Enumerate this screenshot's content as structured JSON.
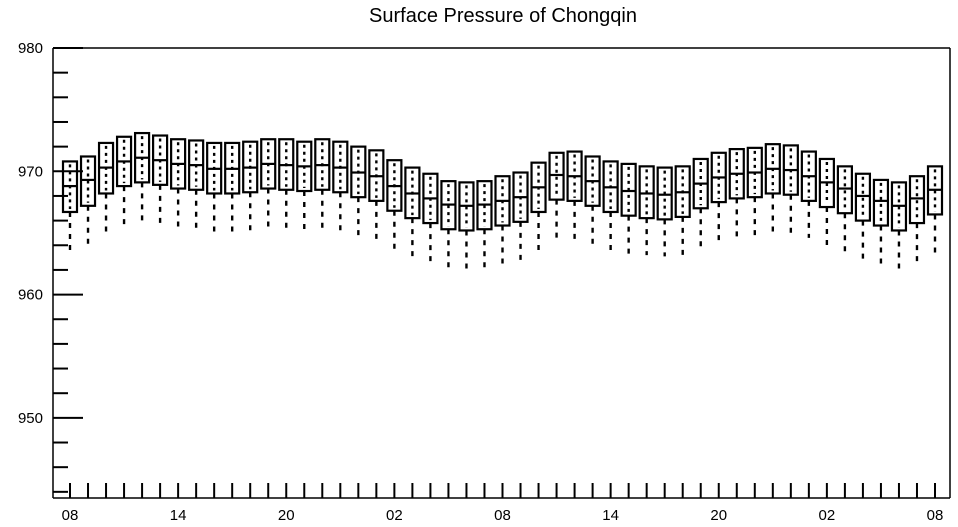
{
  "chart_data": {
    "type": "box",
    "title": "Surface Pressure of Chongqin",
    "xlabel": "",
    "ylabel": "",
    "ylim": [
      943.5,
      980
    ],
    "yticks_major": [
      950,
      960,
      970,
      980
    ],
    "x_tick_labels": [
      "08",
      "14",
      "20",
      "02",
      "08",
      "14",
      "20",
      "02",
      "08"
    ],
    "x_tick_positions": [
      0,
      6,
      12,
      18,
      24,
      30,
      36,
      42,
      48
    ],
    "boxes": [
      {
        "x": 0,
        "min": 963.4,
        "q1": 966.7,
        "median": 968.8,
        "q3": 970.8,
        "max": 971.0
      },
      {
        "x": 1,
        "min": 964.1,
        "q1": 967.2,
        "median": 969.3,
        "q3": 971.2,
        "max": 971.5
      },
      {
        "x": 2,
        "min": 965.1,
        "q1": 968.2,
        "median": 970.3,
        "q3": 972.3,
        "max": 972.5
      },
      {
        "x": 3,
        "min": 965.5,
        "q1": 968.8,
        "median": 970.8,
        "q3": 972.8,
        "max": 973.0
      },
      {
        "x": 4,
        "min": 965.8,
        "q1": 969.1,
        "median": 971.1,
        "q3": 973.1,
        "max": 973.3
      },
      {
        "x": 5,
        "min": 965.6,
        "q1": 968.9,
        "median": 970.9,
        "q3": 972.9,
        "max": 973.1
      },
      {
        "x": 6,
        "min": 965.4,
        "q1": 968.6,
        "median": 970.6,
        "q3": 972.6,
        "max": 972.8
      },
      {
        "x": 7,
        "min": 965.2,
        "q1": 968.5,
        "median": 970.5,
        "q3": 972.5,
        "max": 972.7
      },
      {
        "x": 8,
        "min": 965.0,
        "q1": 968.2,
        "median": 970.2,
        "q3": 972.3,
        "max": 972.5
      },
      {
        "x": 9,
        "min": 964.9,
        "q1": 968.2,
        "median": 970.2,
        "q3": 972.3,
        "max": 972.5
      },
      {
        "x": 10,
        "min": 965.0,
        "q1": 968.3,
        "median": 970.3,
        "q3": 972.4,
        "max": 972.6
      },
      {
        "x": 11,
        "min": 965.3,
        "q1": 968.6,
        "median": 970.6,
        "q3": 972.6,
        "max": 972.8
      },
      {
        "x": 12,
        "min": 965.3,
        "q1": 968.5,
        "median": 970.5,
        "q3": 972.6,
        "max": 972.8
      },
      {
        "x": 13,
        "min": 965.2,
        "q1": 968.4,
        "median": 970.4,
        "q3": 972.4,
        "max": 972.6
      },
      {
        "x": 14,
        "min": 965.3,
        "q1": 968.5,
        "median": 970.5,
        "q3": 972.6,
        "max": 972.8
      },
      {
        "x": 15,
        "min": 965.1,
        "q1": 968.3,
        "median": 970.3,
        "q3": 972.4,
        "max": 972.6
      },
      {
        "x": 16,
        "min": 964.8,
        "q1": 967.9,
        "median": 969.9,
        "q3": 972.0,
        "max": 972.2
      },
      {
        "x": 17,
        "min": 964.5,
        "q1": 967.6,
        "median": 969.6,
        "q3": 971.7,
        "max": 971.9
      },
      {
        "x": 18,
        "min": 963.5,
        "q1": 966.8,
        "median": 968.8,
        "q3": 970.9,
        "max": 971.1
      },
      {
        "x": 19,
        "min": 962.9,
        "q1": 966.2,
        "median": 968.2,
        "q3": 970.3,
        "max": 970.5
      },
      {
        "x": 20,
        "min": 962.5,
        "q1": 965.8,
        "median": 967.8,
        "q3": 969.8,
        "max": 970.0
      },
      {
        "x": 21,
        "min": 962.1,
        "q1": 965.3,
        "median": 967.3,
        "q3": 969.2,
        "max": 969.4
      },
      {
        "x": 22,
        "min": 962.1,
        "q1": 965.2,
        "median": 967.2,
        "q3": 969.1,
        "max": 969.3
      },
      {
        "x": 23,
        "min": 962.2,
        "q1": 965.3,
        "median": 967.3,
        "q3": 969.2,
        "max": 969.4
      },
      {
        "x": 24,
        "min": 962.5,
        "q1": 965.6,
        "median": 967.6,
        "q3": 969.6,
        "max": 969.8
      },
      {
        "x": 25,
        "min": 962.8,
        "q1": 965.9,
        "median": 967.9,
        "q3": 969.9,
        "max": 970.1
      },
      {
        "x": 26,
        "min": 963.5,
        "q1": 966.7,
        "median": 968.7,
        "q3": 970.7,
        "max": 970.9
      },
      {
        "x": 27,
        "min": 964.4,
        "q1": 967.7,
        "median": 969.7,
        "q3": 971.5,
        "max": 971.7
      },
      {
        "x": 28,
        "min": 964.5,
        "q1": 967.6,
        "median": 969.6,
        "q3": 971.6,
        "max": 971.8
      },
      {
        "x": 29,
        "min": 964.0,
        "q1": 967.2,
        "median": 969.2,
        "q3": 971.2,
        "max": 971.4
      },
      {
        "x": 30,
        "min": 963.6,
        "q1": 966.7,
        "median": 968.7,
        "q3": 970.8,
        "max": 971.0
      },
      {
        "x": 31,
        "min": 963.3,
        "q1": 966.4,
        "median": 968.4,
        "q3": 970.6,
        "max": 970.8
      },
      {
        "x": 32,
        "min": 963.2,
        "q1": 966.2,
        "median": 968.2,
        "q3": 970.4,
        "max": 970.6
      },
      {
        "x": 33,
        "min": 963.1,
        "q1": 966.1,
        "median": 968.1,
        "q3": 970.3,
        "max": 970.5
      },
      {
        "x": 34,
        "min": 963.2,
        "q1": 966.3,
        "median": 968.3,
        "q3": 970.4,
        "max": 970.6
      },
      {
        "x": 35,
        "min": 963.8,
        "q1": 967.0,
        "median": 969.0,
        "q3": 971.0,
        "max": 971.2
      },
      {
        "x": 36,
        "min": 964.3,
        "q1": 967.5,
        "median": 969.5,
        "q3": 971.5,
        "max": 971.7
      },
      {
        "x": 37,
        "min": 964.6,
        "q1": 967.8,
        "median": 969.8,
        "q3": 971.8,
        "max": 972.0
      },
      {
        "x": 38,
        "min": 964.8,
        "q1": 967.9,
        "median": 969.9,
        "q3": 971.9,
        "max": 972.1
      },
      {
        "x": 39,
        "min": 965.1,
        "q1": 968.2,
        "median": 970.2,
        "q3": 972.2,
        "max": 972.4
      },
      {
        "x": 40,
        "min": 965.0,
        "q1": 968.1,
        "median": 970.1,
        "q3": 972.1,
        "max": 972.3
      },
      {
        "x": 41,
        "min": 964.6,
        "q1": 967.6,
        "median": 969.6,
        "q3": 971.6,
        "max": 971.8
      },
      {
        "x": 42,
        "min": 964.0,
        "q1": 967.1,
        "median": 969.1,
        "q3": 971.0,
        "max": 971.2
      },
      {
        "x": 43,
        "min": 963.4,
        "q1": 966.6,
        "median": 968.6,
        "q3": 970.4,
        "max": 970.6
      },
      {
        "x": 44,
        "min": 962.8,
        "q1": 966.0,
        "median": 968.0,
        "q3": 969.8,
        "max": 970.0
      },
      {
        "x": 45,
        "min": 962.4,
        "q1": 965.6,
        "median": 967.6,
        "q3": 969.3,
        "max": 969.5
      },
      {
        "x": 46,
        "min": 962.1,
        "q1": 965.2,
        "median": 967.2,
        "q3": 969.1,
        "max": 969.3
      },
      {
        "x": 47,
        "min": 962.6,
        "q1": 965.8,
        "median": 967.8,
        "q3": 969.6,
        "max": 969.8
      },
      {
        "x": 48,
        "min": 963.3,
        "q1": 966.5,
        "median": 968.5,
        "q3": 970.4,
        "max": 970.6
      }
    ],
    "grid": false,
    "legend": "none"
  }
}
